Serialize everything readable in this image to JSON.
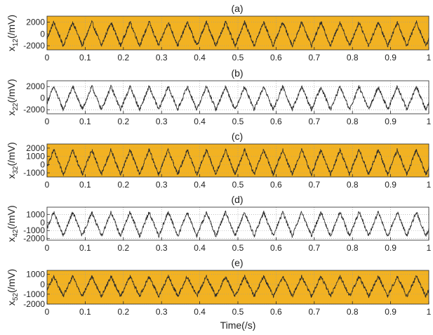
{
  "chart_data": [
    {
      "type": "line",
      "title": "(a)",
      "ylabel_main": "x",
      "ylabel_sub": "12",
      "ylabel_unit": "(/mV)",
      "background": "#F2B222",
      "line_color": "#2b2b2b",
      "grid": true,
      "xlim": [
        0,
        1
      ],
      "ylim": [
        -2700,
        3000
      ],
      "yticks": [
        -2000,
        0,
        2000
      ],
      "xticks": [
        0,
        0.1,
        0.2,
        0.3,
        0.4,
        0.5,
        0.6,
        0.7,
        0.8,
        0.9,
        1
      ],
      "series": [
        {
          "frequency_hz": 20,
          "amplitude": 2000,
          "offset": 0,
          "phase_cycles": 0.15,
          "noise": 350
        }
      ]
    },
    {
      "type": "line",
      "title": "(b)",
      "ylabel_main": "x",
      "ylabel_sub": "22",
      "ylabel_unit": "(/mV)",
      "background": "#ffffff",
      "line_color": "#2b2b2b",
      "grid": true,
      "xlim": [
        0,
        1
      ],
      "ylim": [
        -2700,
        3000
      ],
      "yticks": [
        -2000,
        0,
        2000
      ],
      "xticks": [
        0,
        0.1,
        0.2,
        0.3,
        0.4,
        0.5,
        0.6,
        0.7,
        0.8,
        0.9,
        1
      ],
      "series": [
        {
          "frequency_hz": 20,
          "amplitude": 2000,
          "offset": 0,
          "phase_cycles": 0.15,
          "noise": 350
        }
      ]
    },
    {
      "type": "line",
      "title": "(c)",
      "ylabel_main": "x",
      "ylabel_sub": "32",
      "ylabel_unit": "(/mV)",
      "background": "#F2B222",
      "line_color": "#2b2b2b",
      "grid": true,
      "xlim": [
        0,
        1
      ],
      "ylim": [
        -1500,
        2500
      ],
      "yticks": [
        -1000,
        0,
        1000,
        2000
      ],
      "xticks": [
        0,
        0.1,
        0.2,
        0.3,
        0.4,
        0.5,
        0.6,
        0.7,
        0.8,
        0.9,
        1
      ],
      "series": [
        {
          "frequency_hz": 20,
          "amplitude": 1500,
          "offset": 300,
          "phase_cycles": 0.15,
          "noise": 250
        }
      ]
    },
    {
      "type": "line",
      "title": "(d)",
      "ylabel_main": "x",
      "ylabel_sub": "42",
      "ylabel_unit": "(/mV)",
      "background": "#ffffff",
      "line_color": "#2b2b2b",
      "grid": true,
      "xlim": [
        0,
        1
      ],
      "ylim": [
        -2200,
        1900
      ],
      "yticks": [
        -2000,
        -1000,
        0,
        1000
      ],
      "xticks": [
        0,
        0.1,
        0.2,
        0.3,
        0.4,
        0.5,
        0.6,
        0.7,
        0.8,
        0.9,
        1
      ],
      "series": [
        {
          "frequency_hz": 20,
          "amplitude": 1500,
          "offset": -200,
          "phase_cycles": 0.15,
          "noise": 250
        }
      ]
    },
    {
      "type": "line",
      "title": "(e)",
      "ylabel_main": "x",
      "ylabel_sub": "52",
      "ylabel_unit": "(/mV)",
      "xlabel": "Time(/s)",
      "background": "#F2B222",
      "line_color": "#2b2b2b",
      "grid": true,
      "xlim": [
        0,
        1
      ],
      "ylim": [
        -2000,
        1400
      ],
      "yticks": [
        -2000,
        -1000,
        0,
        1000
      ],
      "xticks": [
        0,
        0.1,
        0.2,
        0.3,
        0.4,
        0.5,
        0.6,
        0.7,
        0.8,
        0.9,
        1
      ],
      "series": [
        {
          "frequency_hz": 20,
          "amplitude": 1000,
          "offset": -200,
          "phase_cycles": 0.15,
          "noise": 200
        }
      ]
    }
  ]
}
